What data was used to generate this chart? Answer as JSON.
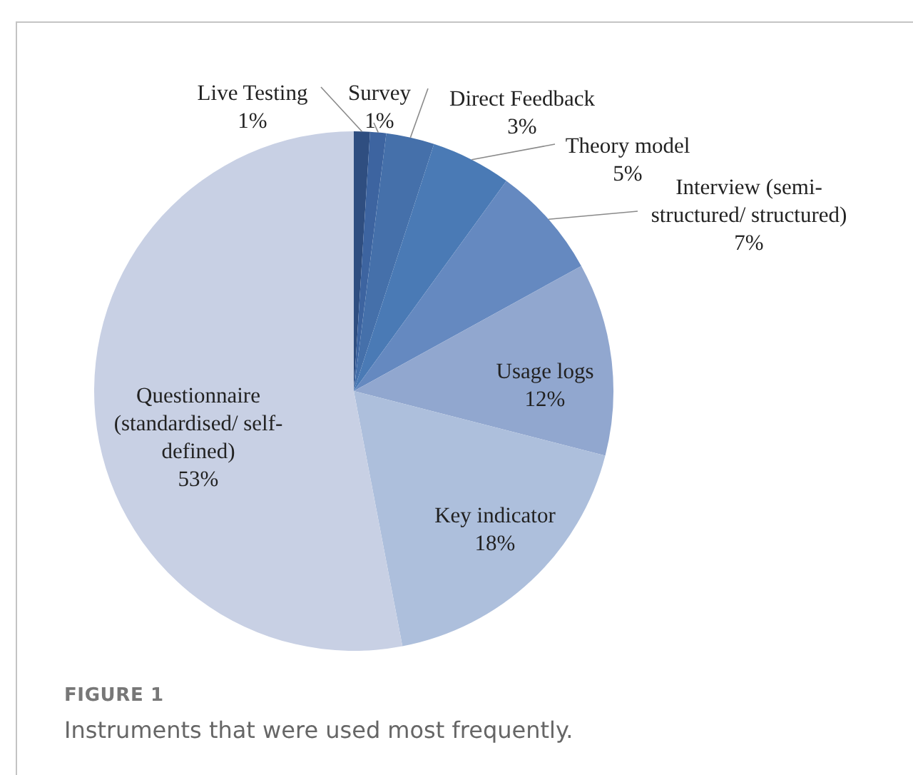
{
  "chart_data": {
    "type": "pie",
    "categories": [
      "Live Testing",
      "Survey",
      "Direct Feedback",
      "Theory model",
      "Interview (semi-structured/ structured)",
      "Usage logs",
      "Key indicator",
      "Questionnaire (standardised/ self-defined)"
    ],
    "values": [
      1,
      1,
      3,
      5,
      7,
      12,
      18,
      53
    ],
    "value_labels": [
      "1%",
      "1%",
      "3%",
      "5%",
      "7%",
      "12%",
      "18%",
      "53%"
    ],
    "colors": [
      "#2f4e80",
      "#3d64a0",
      "#4570aa",
      "#4a7ab5",
      "#6589c0",
      "#91a7cf",
      "#adbfdc",
      "#c8d0e4"
    ],
    "legend": false,
    "annotations": [
      "FIGURE 1",
      "Instruments that were used most frequently."
    ]
  }
}
